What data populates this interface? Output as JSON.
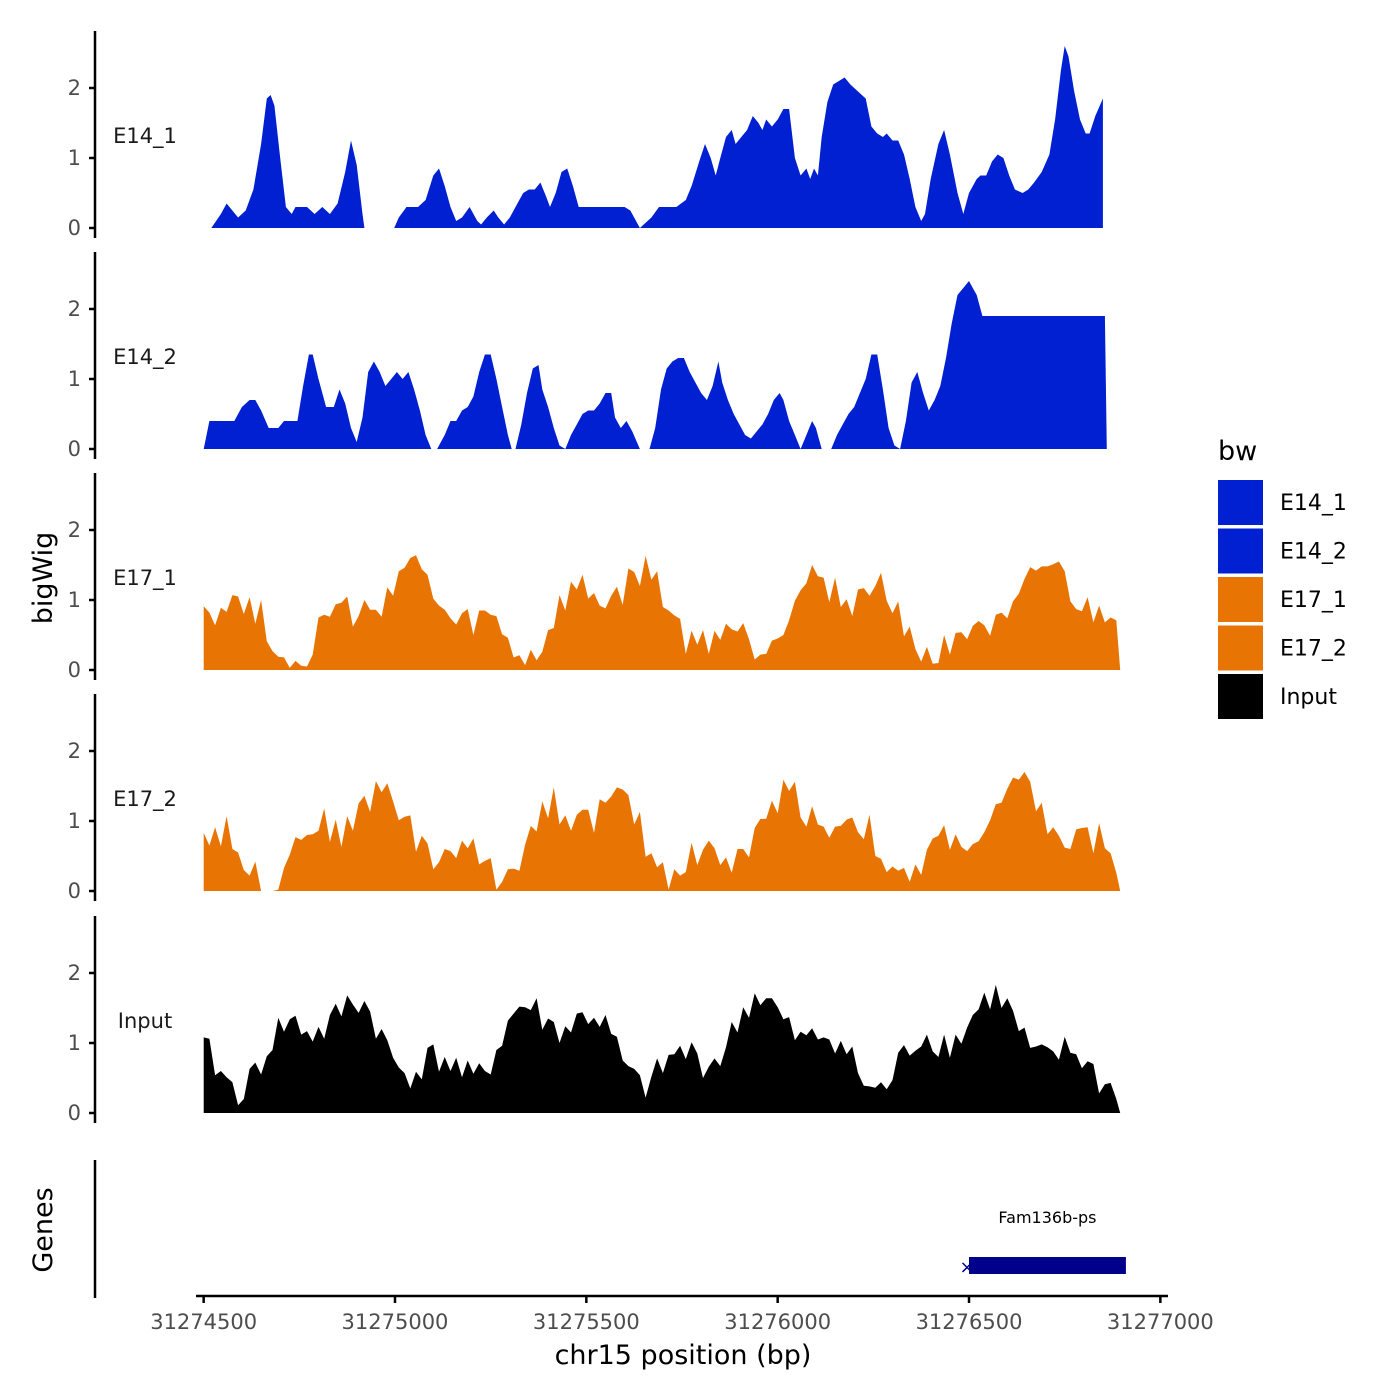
{
  "chart_data": {
    "type": "area",
    "title": "",
    "xlabel": "chr15 position (bp)",
    "ylabel": "bigWig",
    "gene_track_label": "Genes",
    "xlim": [
      31274480,
      31277020
    ],
    "ylim": [
      0,
      2.8
    ],
    "x_ticks": [
      31274500,
      31275000,
      31275500,
      31276000,
      31276500,
      31277000
    ],
    "x_tick_labels": [
      "31274500",
      "31275000",
      "31275500",
      "31276000",
      "31276500",
      "31277000"
    ],
    "y_ticks": [
      0,
      1,
      2
    ],
    "y_tick_labels": [
      "0",
      "1",
      "2"
    ],
    "legend": {
      "title": "bw",
      "entries": [
        {
          "label": "E14_1",
          "color": "#0020D1"
        },
        {
          "label": "E14_2",
          "color": "#0020D1"
        },
        {
          "label": "E17_1",
          "color": "#E87503"
        },
        {
          "label": "E17_2",
          "color": "#E87503"
        },
        {
          "label": "Input",
          "color": "#000000"
        }
      ]
    },
    "series": [
      {
        "name": "E14_1",
        "color": "#0020D1",
        "points": [
          [
            31274520,
            0
          ],
          [
            31274545,
            0.2
          ],
          [
            31274560,
            0.35
          ],
          [
            31274590,
            0.15
          ],
          [
            31274610,
            0.25
          ],
          [
            31274630,
            0.55
          ],
          [
            31274650,
            1.2
          ],
          [
            31274665,
            1.85
          ],
          [
            31274675,
            1.9
          ],
          [
            31274685,
            1.75
          ],
          [
            31274700,
            1.0
          ],
          [
            31274715,
            0.3
          ],
          [
            31274730,
            0.2
          ],
          [
            31274740,
            0.3
          ],
          [
            31274770,
            0.3
          ],
          [
            31274790,
            0.2
          ],
          [
            31274810,
            0.3
          ],
          [
            31274830,
            0.2
          ],
          [
            31274850,
            0.35
          ],
          [
            31274870,
            0.8
          ],
          [
            31274885,
            1.25
          ],
          [
            31274900,
            0.9
          ],
          [
            31274915,
            0.2
          ],
          [
            31274920,
            0
          ],
          [
            31274998,
            0
          ],
          [
            31275010,
            0.15
          ],
          [
            31275030,
            0.3
          ],
          [
            31275060,
            0.3
          ],
          [
            31275080,
            0.4
          ],
          [
            31275100,
            0.75
          ],
          [
            31275115,
            0.85
          ],
          [
            31275130,
            0.6
          ],
          [
            31275145,
            0.3
          ],
          [
            31275160,
            0.1
          ],
          [
            31275175,
            0.15
          ],
          [
            31275195,
            0.3
          ],
          [
            31275215,
            0.1
          ],
          [
            31275225,
            0.05
          ],
          [
            31275240,
            0.15
          ],
          [
            31275258,
            0.25
          ],
          [
            31275270,
            0.15
          ],
          [
            31275285,
            0.05
          ],
          [
            31275300,
            0.15
          ],
          [
            31275320,
            0.35
          ],
          [
            31275335,
            0.5
          ],
          [
            31275350,
            0.55
          ],
          [
            31275365,
            0.55
          ],
          [
            31275380,
            0.65
          ],
          [
            31275395,
            0.45
          ],
          [
            31275405,
            0.3
          ],
          [
            31275420,
            0.5
          ],
          [
            31275435,
            0.8
          ],
          [
            31275450,
            0.85
          ],
          [
            31275465,
            0.6
          ],
          [
            31275480,
            0.3
          ],
          [
            31275500,
            0.3
          ],
          [
            31275550,
            0.3
          ],
          [
            31275600,
            0.3
          ],
          [
            31275615,
            0.25
          ],
          [
            31275640,
            0
          ],
          [
            31275670,
            0.15
          ],
          [
            31275690,
            0.3
          ],
          [
            31275735,
            0.3
          ],
          [
            31275760,
            0.4
          ],
          [
            31275775,
            0.6
          ],
          [
            31275795,
            0.95
          ],
          [
            31275810,
            1.2
          ],
          [
            31275825,
            1.0
          ],
          [
            31275838,
            0.75
          ],
          [
            31275850,
            1.0
          ],
          [
            31275865,
            1.3
          ],
          [
            31275880,
            1.4
          ],
          [
            31275890,
            1.2
          ],
          [
            31275905,
            1.3
          ],
          [
            31275920,
            1.4
          ],
          [
            31275935,
            1.6
          ],
          [
            31275950,
            1.5
          ],
          [
            31275960,
            1.4
          ],
          [
            31275970,
            1.55
          ],
          [
            31275985,
            1.45
          ],
          [
            31276000,
            1.55
          ],
          [
            31276015,
            1.7
          ],
          [
            31276030,
            1.7
          ],
          [
            31276045,
            1.0
          ],
          [
            31276060,
            0.75
          ],
          [
            31276075,
            0.85
          ],
          [
            31276085,
            0.7
          ],
          [
            31276095,
            0.85
          ],
          [
            31276105,
            0.75
          ],
          [
            31276115,
            1.3
          ],
          [
            31276130,
            1.8
          ],
          [
            31276145,
            2.05
          ],
          [
            31276160,
            2.1
          ],
          [
            31276175,
            2.15
          ],
          [
            31276190,
            2.05
          ],
          [
            31276210,
            1.95
          ],
          [
            31276230,
            1.85
          ],
          [
            31276245,
            1.45
          ],
          [
            31276260,
            1.35
          ],
          [
            31276275,
            1.3
          ],
          [
            31276285,
            1.35
          ],
          [
            31276300,
            1.25
          ],
          [
            31276315,
            1.25
          ],
          [
            31276330,
            1.05
          ],
          [
            31276345,
            0.7
          ],
          [
            31276360,
            0.3
          ],
          [
            31276375,
            0.1
          ],
          [
            31276385,
            0.2
          ],
          [
            31276400,
            0.7
          ],
          [
            31276420,
            1.2
          ],
          [
            31276435,
            1.4
          ],
          [
            31276450,
            1.05
          ],
          [
            31276470,
            0.5
          ],
          [
            31276485,
            0.2
          ],
          [
            31276500,
            0.5
          ],
          [
            31276520,
            0.7
          ],
          [
            31276530,
            0.75
          ],
          [
            31276545,
            0.75
          ],
          [
            31276560,
            0.95
          ],
          [
            31276575,
            1.05
          ],
          [
            31276590,
            1.0
          ],
          [
            31276605,
            0.75
          ],
          [
            31276620,
            0.55
          ],
          [
            31276640,
            0.5
          ],
          [
            31276655,
            0.55
          ],
          [
            31276670,
            0.65
          ],
          [
            31276690,
            0.8
          ],
          [
            31276710,
            1.05
          ],
          [
            31276725,
            1.55
          ],
          [
            31276740,
            2.25
          ],
          [
            31276750,
            2.6
          ],
          [
            31276760,
            2.45
          ],
          [
            31276775,
            1.95
          ],
          [
            31276790,
            1.55
          ],
          [
            31276805,
            1.35
          ],
          [
            31276815,
            1.35
          ],
          [
            31276830,
            1.6
          ],
          [
            31276850,
            1.85
          ],
          [
            31276850,
            0
          ]
        ]
      },
      {
        "name": "E14_2",
        "color": "#0020D1",
        "points": [
          [
            31274500,
            0
          ],
          [
            31274515,
            0.4
          ],
          [
            31274560,
            0.4
          ],
          [
            31274580,
            0.4
          ],
          [
            31274600,
            0.6
          ],
          [
            31274620,
            0.7
          ],
          [
            31274635,
            0.7
          ],
          [
            31274650,
            0.55
          ],
          [
            31274670,
            0.3
          ],
          [
            31274695,
            0.3
          ],
          [
            31274710,
            0.4
          ],
          [
            31274745,
            0.4
          ],
          [
            31274760,
            0.9
          ],
          [
            31274775,
            1.35
          ],
          [
            31274785,
            1.35
          ],
          [
            31274800,
            1.0
          ],
          [
            31274820,
            0.6
          ],
          [
            31274840,
            0.6
          ],
          [
            31274855,
            0.85
          ],
          [
            31274870,
            0.65
          ],
          [
            31274885,
            0.3
          ],
          [
            31274900,
            0.1
          ],
          [
            31274915,
            0.45
          ],
          [
            31274930,
            1.1
          ],
          [
            31274945,
            1.25
          ],
          [
            31274960,
            1.1
          ],
          [
            31274975,
            0.9
          ],
          [
            31274990,
            1.0
          ],
          [
            31275005,
            1.1
          ],
          [
            31275020,
            1.0
          ],
          [
            31275035,
            1.1
          ],
          [
            31275050,
            0.85
          ],
          [
            31275065,
            0.55
          ],
          [
            31275080,
            0.2
          ],
          [
            31275095,
            0
          ],
          [
            31275110,
            0
          ],
          [
            31275130,
            0.2
          ],
          [
            31275145,
            0.4
          ],
          [
            31275160,
            0.4
          ],
          [
            31275175,
            0.55
          ],
          [
            31275190,
            0.6
          ],
          [
            31275205,
            0.75
          ],
          [
            31275220,
            1.1
          ],
          [
            31275235,
            1.35
          ],
          [
            31275250,
            1.35
          ],
          [
            31275265,
            1.0
          ],
          [
            31275280,
            0.6
          ],
          [
            31275295,
            0.2
          ],
          [
            31275305,
            0
          ],
          [
            31275315,
            0
          ],
          [
            31275330,
            0.35
          ],
          [
            31275345,
            0.8
          ],
          [
            31275360,
            1.15
          ],
          [
            31275375,
            1.2
          ],
          [
            31275385,
            0.85
          ],
          [
            31275400,
            0.6
          ],
          [
            31275415,
            0.3
          ],
          [
            31275430,
            0.05
          ],
          [
            31275445,
            0
          ],
          [
            31275460,
            0.2
          ],
          [
            31275475,
            0.35
          ],
          [
            31275490,
            0.5
          ],
          [
            31275505,
            0.55
          ],
          [
            31275520,
            0.55
          ],
          [
            31275535,
            0.65
          ],
          [
            31275550,
            0.8
          ],
          [
            31275565,
            0.8
          ],
          [
            31275575,
            0.45
          ],
          [
            31275590,
            0.3
          ],
          [
            31275605,
            0.4
          ],
          [
            31275620,
            0.25
          ],
          [
            31275640,
            0
          ],
          [
            31275665,
            0
          ],
          [
            31275680,
            0.3
          ],
          [
            31275695,
            0.85
          ],
          [
            31275710,
            1.15
          ],
          [
            31275725,
            1.25
          ],
          [
            31275740,
            1.3
          ],
          [
            31275755,
            1.3
          ],
          [
            31275770,
            1.1
          ],
          [
            31275785,
            0.95
          ],
          [
            31275800,
            0.8
          ],
          [
            31275815,
            0.7
          ],
          [
            31275830,
            0.9
          ],
          [
            31275845,
            1.25
          ],
          [
            31275855,
            0.95
          ],
          [
            31275870,
            0.7
          ],
          [
            31275885,
            0.5
          ],
          [
            31275900,
            0.35
          ],
          [
            31275915,
            0.2
          ],
          [
            31275930,
            0.15
          ],
          [
            31275945,
            0.25
          ],
          [
            31275960,
            0.35
          ],
          [
            31275975,
            0.5
          ],
          [
            31275990,
            0.7
          ],
          [
            31276005,
            0.8
          ],
          [
            31276015,
            0.7
          ],
          [
            31276030,
            0.4
          ],
          [
            31276045,
            0.2
          ],
          [
            31276060,
            0
          ],
          [
            31276075,
            0.2
          ],
          [
            31276090,
            0.4
          ],
          [
            31276100,
            0.3
          ],
          [
            31276115,
            0
          ],
          [
            31276140,
            0
          ],
          [
            31276155,
            0.2
          ],
          [
            31276170,
            0.35
          ],
          [
            31276185,
            0.5
          ],
          [
            31276200,
            0.6
          ],
          [
            31276215,
            0.8
          ],
          [
            31276230,
            1.0
          ],
          [
            31276245,
            1.35
          ],
          [
            31276260,
            1.35
          ],
          [
            31276275,
            0.85
          ],
          [
            31276290,
            0.3
          ],
          [
            31276305,
            0.05
          ],
          [
            31276320,
            0
          ],
          [
            31276335,
            0.4
          ],
          [
            31276350,
            0.95
          ],
          [
            31276365,
            1.1
          ],
          [
            31276380,
            0.8
          ],
          [
            31276395,
            0.55
          ],
          [
            31276410,
            0.7
          ],
          [
            31276425,
            0.9
          ],
          [
            31276440,
            1.3
          ],
          [
            31276455,
            1.8
          ],
          [
            31276470,
            2.2
          ],
          [
            31276485,
            2.3
          ],
          [
            31276500,
            2.4
          ],
          [
            31276510,
            2.3
          ],
          [
            31276520,
            2.2
          ],
          [
            31276535,
            1.9
          ],
          [
            31276855,
            1.9
          ],
          [
            31276860,
            0
          ]
        ]
      },
      {
        "name": "E17_1",
        "color": "#E87503"
      },
      {
        "name": "E17_2",
        "color": "#E87503"
      },
      {
        "name": "Input",
        "color": "#000000"
      }
    ],
    "gene": {
      "name": "Fam136b-ps",
      "start": 31276500,
      "end": 31276910,
      "color": "#00008B"
    }
  }
}
